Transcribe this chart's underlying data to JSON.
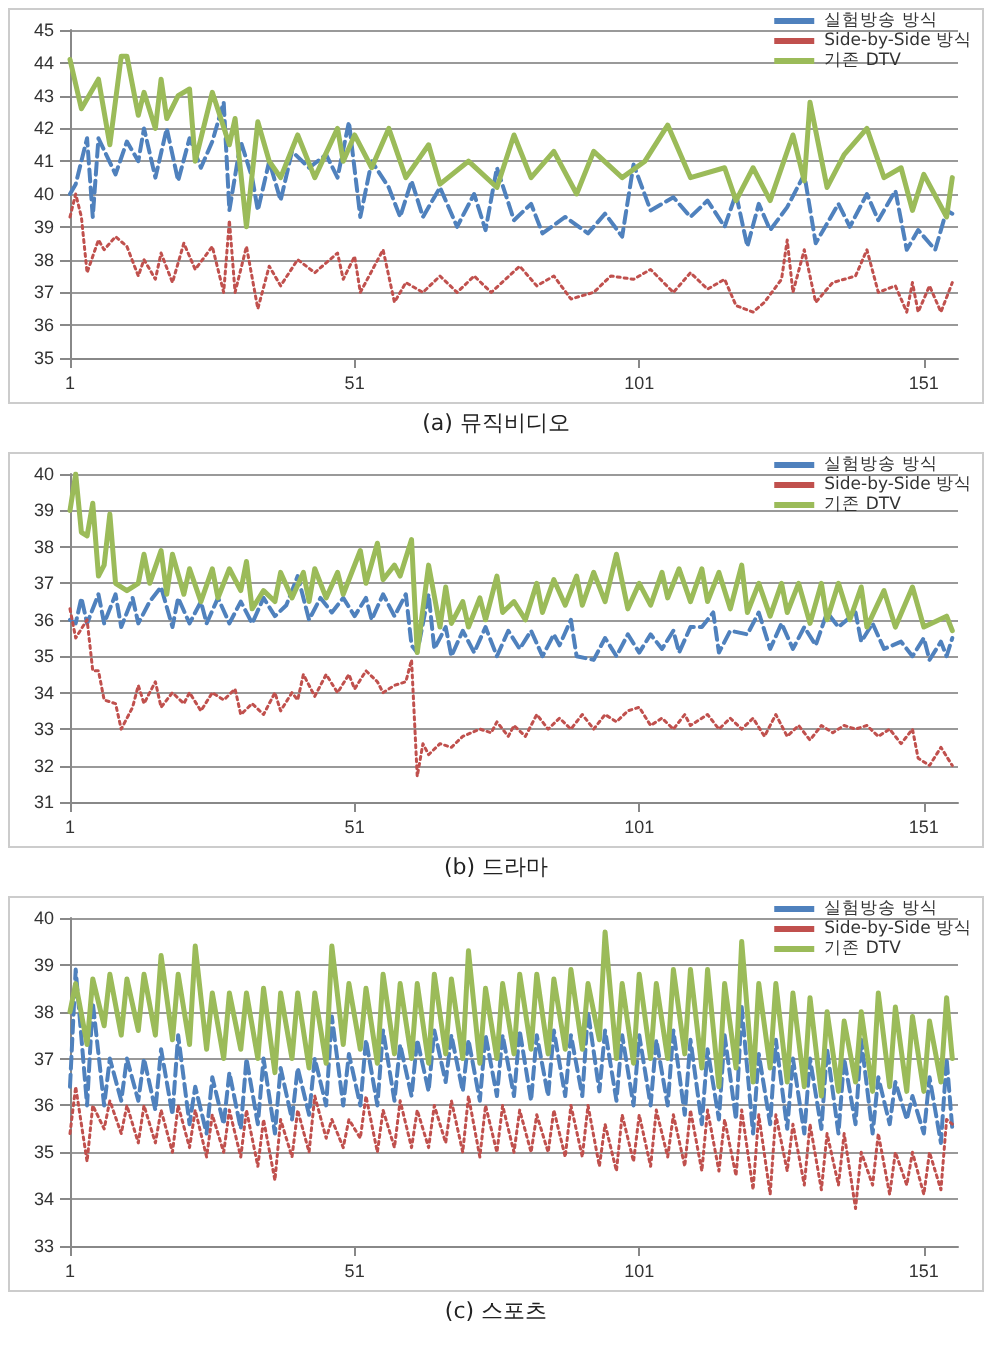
{
  "chart_data": [
    {
      "type": "line",
      "title": "(a) 뮤직비디오",
      "xlim": [
        1,
        157
      ],
      "xticks": [
        1,
        51,
        101,
        151
      ],
      "ylim": [
        35,
        45
      ],
      "yticks": [
        35,
        36,
        37,
        38,
        39,
        40,
        41,
        42,
        43,
        44,
        45
      ],
      "grid": "y",
      "legend": "top right",
      "marker": "none",
      "series": [
        {
          "name": "실험방송 방식",
          "color": "#4f81bd",
          "line_style": "dashed",
          "x": [
            1,
            2,
            4,
            5,
            6,
            9,
            11,
            13,
            14,
            16,
            18,
            20,
            22,
            24,
            26,
            28,
            29,
            31,
            33,
            34,
            36,
            38,
            40,
            43,
            46,
            48,
            50,
            52,
            54,
            57,
            59,
            61,
            63,
            66,
            69,
            72,
            74,
            76,
            79,
            82,
            84,
            88,
            92,
            95,
            98,
            100,
            103,
            107,
            110,
            113,
            116,
            118,
            120,
            122,
            124,
            127,
            130,
            132,
            136,
            138,
            141,
            143,
            146,
            148,
            150,
            153,
            155,
            156
          ],
          "values": [
            40,
            40.3,
            41.7,
            39.3,
            41.7,
            40.6,
            41.6,
            41,
            42,
            40.5,
            42,
            40.4,
            41.7,
            40.8,
            41.6,
            42.8,
            39.5,
            41.6,
            40.5,
            39.5,
            41,
            39.8,
            41.3,
            40.8,
            41.2,
            40.5,
            42.2,
            39.3,
            41,
            40.2,
            39.3,
            40.4,
            39.3,
            40.2,
            39,
            40,
            38.9,
            40.8,
            39.2,
            39.7,
            38.8,
            39.3,
            38.8,
            39.4,
            38.7,
            40.9,
            39.5,
            39.9,
            39.3,
            39.8,
            39,
            40,
            38.4,
            39.7,
            38.9,
            39.6,
            40.6,
            38.5,
            39.7,
            39,
            40,
            39.2,
            40.1,
            38.3,
            38.9,
            38.3,
            39.5,
            39.4
          ]
        },
        {
          "name": "Side-by-Side 방식",
          "color": "#c0504d",
          "line_style": "dotted",
          "x": [
            1,
            2,
            3,
            4,
            6,
            7,
            9,
            11,
            13,
            14,
            16,
            17,
            19,
            21,
            23,
            26,
            28,
            29,
            30,
            32,
            34,
            36,
            38,
            41,
            44,
            48,
            49,
            51,
            52,
            56,
            58,
            60,
            63,
            66,
            69,
            72,
            75,
            80,
            83,
            86,
            89,
            93,
            96,
            100,
            103,
            107,
            110,
            113,
            116,
            118,
            121,
            123,
            126,
            127,
            128,
            130,
            132,
            135,
            139,
            141,
            143,
            146,
            148,
            149,
            150,
            152,
            154,
            156
          ],
          "values": [
            39.3,
            40,
            39.3,
            37.6,
            38.6,
            38.3,
            38.7,
            38.4,
            37.5,
            38,
            37.4,
            38.2,
            37.3,
            38.5,
            37.7,
            38.4,
            37,
            39.2,
            37,
            38.4,
            36.5,
            37.8,
            37.2,
            38,
            37.6,
            38.2,
            37.4,
            38.1,
            37,
            38.3,
            36.7,
            37.3,
            37,
            37.5,
            37,
            37.5,
            37,
            37.8,
            37.2,
            37.5,
            36.8,
            37,
            37.5,
            37.4,
            37.7,
            37,
            37.6,
            37.1,
            37.4,
            36.6,
            36.4,
            36.7,
            37.4,
            38.6,
            37,
            38.3,
            36.7,
            37.3,
            37.5,
            38.3,
            37,
            37.2,
            36.4,
            37.3,
            36.4,
            37.2,
            36.4,
            37.3
          ]
        },
        {
          "name": "기존 DTV",
          "color": "#9bbb59",
          "line_style": "solid",
          "x": [
            1,
            3,
            6,
            8,
            10,
            11,
            13,
            14,
            16,
            17,
            18,
            20,
            22,
            23,
            26,
            29,
            30,
            32,
            34,
            36,
            38,
            41,
            44,
            48,
            49,
            51,
            54,
            57,
            60,
            64,
            66,
            71,
            76,
            79,
            82,
            86,
            90,
            93,
            98,
            102,
            106,
            110,
            116,
            118,
            121,
            124,
            128,
            130,
            131,
            134,
            137,
            141,
            144,
            147,
            149,
            151,
            155,
            156
          ],
          "values": [
            44.1,
            42.6,
            43.5,
            41.5,
            44.2,
            44.2,
            42.4,
            43.1,
            42,
            43.5,
            42.3,
            43,
            43.2,
            41,
            43.1,
            41.5,
            42.3,
            39,
            42.2,
            41,
            40.5,
            41.8,
            40.5,
            42,
            41,
            41.8,
            40.8,
            42,
            40.5,
            41.5,
            40.3,
            41,
            40.2,
            41.8,
            40.5,
            41.3,
            40,
            41.3,
            40.5,
            41,
            42.1,
            40.5,
            40.8,
            39.8,
            40.8,
            39.8,
            41.8,
            40.4,
            42.8,
            40.2,
            41.2,
            42,
            40.5,
            40.8,
            39.5,
            40.6,
            39.3,
            40.5
          ]
        }
      ]
    },
    {
      "type": "line",
      "title": "(b) 드라마",
      "xlim": [
        1,
        157
      ],
      "xticks": [
        1,
        51,
        101,
        151
      ],
      "ylim": [
        31,
        40
      ],
      "yticks": [
        31,
        32,
        33,
        34,
        35,
        36,
        37,
        38,
        39,
        40
      ],
      "grid": "y",
      "legend": "top right",
      "marker": "none",
      "series": [
        {
          "name": "실험방송 방식",
          "color": "#4f81bd",
          "line_style": "dashed",
          "x": [
            1,
            2,
            3,
            4,
            6,
            7,
            9,
            10,
            12,
            13,
            15,
            17,
            19,
            20,
            22,
            24,
            25,
            27,
            29,
            31,
            33,
            35,
            37,
            39,
            41,
            43,
            45,
            47,
            49,
            51,
            53,
            54,
            56,
            58,
            60,
            61,
            62,
            64,
            65,
            67,
            68,
            70,
            72,
            74,
            76,
            78,
            80,
            82,
            84,
            86,
            87,
            89,
            90,
            93,
            95,
            97,
            99,
            101,
            103,
            105,
            107,
            108,
            110,
            112,
            114,
            115,
            117,
            120,
            122,
            124,
            126,
            128,
            130,
            132,
            134,
            136,
            139,
            140,
            142,
            144,
            147,
            149,
            151,
            152,
            154,
            155,
            156
          ],
          "values": [
            36,
            35.9,
            36.6,
            35.9,
            36.7,
            35.9,
            36.7,
            35.8,
            36.6,
            35.9,
            36.5,
            36.9,
            35.8,
            36.6,
            35.9,
            36.5,
            35.9,
            36.6,
            35.9,
            36.5,
            35.9,
            36.6,
            36.1,
            36.4,
            37.2,
            36,
            36.6,
            36.2,
            36.6,
            36.1,
            36.6,
            36,
            36.7,
            36.1,
            36.7,
            35.3,
            35.1,
            36.7,
            35.2,
            35.8,
            35,
            35.7,
            35.1,
            35.8,
            35,
            35.7,
            35.2,
            35.7,
            35,
            35.6,
            35.3,
            36,
            35,
            34.9,
            35.5,
            35,
            35.6,
            35.1,
            35.6,
            35.2,
            35.7,
            35.1,
            35.8,
            35.8,
            36.2,
            35.1,
            35.7,
            35.6,
            36.2,
            35.2,
            35.9,
            35.2,
            35.8,
            35.3,
            36.2,
            35.8,
            36.2,
            35.4,
            35.9,
            35.2,
            35.4,
            35,
            35.5,
            34.9,
            35.4,
            35,
            35.5
          ]
        },
        {
          "name": "Side-by-Side 방식",
          "color": "#c0504d",
          "line_style": "dotted",
          "x": [
            1,
            2,
            4,
            5,
            6,
            7,
            9,
            10,
            12,
            13,
            14,
            16,
            17,
            19,
            21,
            22,
            24,
            26,
            28,
            30,
            31,
            33,
            35,
            37,
            38,
            40,
            41,
            42,
            44,
            46,
            48,
            50,
            51,
            53,
            55,
            56,
            58,
            60,
            61,
            62,
            63,
            64,
            66,
            68,
            70,
            73,
            75,
            76,
            78,
            79,
            81,
            83,
            85,
            87,
            89,
            91,
            93,
            95,
            97,
            99,
            101,
            103,
            105,
            107,
            109,
            110,
            113,
            115,
            117,
            119,
            121,
            123,
            125,
            127,
            129,
            131,
            133,
            135,
            137,
            139,
            141,
            143,
            145,
            147,
            149,
            150,
            152,
            154,
            156
          ],
          "values": [
            36.3,
            35.5,
            36,
            34.6,
            34.6,
            33.8,
            33.7,
            33,
            33.6,
            34.2,
            33.7,
            34.3,
            33.6,
            34,
            33.7,
            34,
            33.5,
            34,
            33.8,
            34.1,
            33.4,
            33.7,
            33.4,
            34,
            33.5,
            34,
            33.8,
            34.5,
            33.9,
            34.5,
            34,
            34.5,
            34.1,
            34.6,
            34.3,
            34,
            34.2,
            34.3,
            34.9,
            31.7,
            32.6,
            32.3,
            32.6,
            32.5,
            32.8,
            33,
            32.9,
            33.2,
            32.8,
            33.1,
            32.8,
            33.4,
            33,
            33.3,
            33,
            33.4,
            33,
            33.4,
            33.2,
            33.5,
            33.6,
            33.1,
            33.3,
            33,
            33.4,
            33.1,
            33.4,
            33,
            33.3,
            33,
            33.3,
            32.8,
            33.4,
            32.8,
            33.1,
            32.7,
            33.1,
            32.9,
            33.1,
            33,
            33.1,
            32.8,
            33,
            32.6,
            33,
            32.2,
            32,
            32.5,
            32
          ]
        },
        {
          "name": "기존 DTV",
          "color": "#9bbb59",
          "line_style": "solid",
          "x": [
            1,
            2,
            3,
            4,
            5,
            6,
            7,
            8,
            9,
            11,
            13,
            14,
            15,
            17,
            18,
            19,
            21,
            22,
            24,
            26,
            27,
            29,
            31,
            32,
            33,
            35,
            37,
            38,
            40,
            42,
            43,
            44,
            46,
            48,
            49,
            52,
            53,
            55,
            56,
            58,
            59,
            61,
            62,
            64,
            66,
            67,
            68,
            70,
            71,
            73,
            74,
            76,
            77,
            79,
            81,
            83,
            84,
            86,
            88,
            90,
            91,
            93,
            95,
            97,
            99,
            101,
            103,
            105,
            106,
            108,
            110,
            112,
            113,
            115,
            117,
            119,
            120,
            122,
            124,
            126,
            127,
            129,
            131,
            133,
            134,
            136,
            138,
            140,
            141,
            144,
            146,
            149,
            151,
            155,
            156
          ],
          "values": [
            39,
            40,
            38.4,
            38.3,
            39.2,
            37.2,
            37.5,
            38.9,
            37,
            36.8,
            37,
            37.8,
            37,
            37.9,
            36.7,
            37.8,
            36.7,
            37.4,
            36.5,
            37.4,
            36.6,
            37.4,
            36.8,
            37.6,
            36.3,
            36.8,
            36.5,
            37.3,
            36.6,
            37.3,
            36.5,
            37.4,
            36.6,
            37.3,
            36.7,
            37.9,
            37,
            38.1,
            37.1,
            37.5,
            37.2,
            38.2,
            35.1,
            37.5,
            35.8,
            36.9,
            35.9,
            36.5,
            35.8,
            36.6,
            36,
            37.2,
            36.2,
            36.5,
            36,
            37,
            36.2,
            37.1,
            36.4,
            37.2,
            36.4,
            37.3,
            36.5,
            37.8,
            36.3,
            37,
            36.4,
            37.3,
            36.6,
            37.4,
            36.5,
            37.4,
            36.5,
            37.3,
            36.3,
            37.5,
            36.2,
            37,
            36.1,
            37,
            36.2,
            37,
            35.9,
            37,
            36,
            37,
            36,
            36.9,
            35.8,
            36.8,
            35.8,
            36.9,
            35.8,
            36.1,
            35.7
          ]
        }
      ]
    },
    {
      "type": "line",
      "title": "(c) 스포츠",
      "xlim": [
        1,
        157
      ],
      "xticks": [
        1,
        51,
        101,
        151
      ],
      "ylim": [
        33,
        40
      ],
      "yticks": [
        33,
        34,
        35,
        36,
        37,
        38,
        39,
        40
      ],
      "grid": "y",
      "legend": "top right",
      "marker": "none",
      "x": [
        1,
        2,
        4,
        5,
        7,
        8,
        10,
        11,
        13,
        14,
        16,
        17,
        19,
        20,
        22,
        23,
        25,
        26,
        28,
        29,
        31,
        32,
        34,
        35,
        37,
        38,
        40,
        41,
        43,
        44,
        46,
        47,
        49,
        50,
        52,
        53,
        55,
        56,
        58,
        59,
        61,
        62,
        64,
        65,
        67,
        68,
        70,
        71,
        73,
        74,
        76,
        77,
        79,
        80,
        82,
        83,
        85,
        86,
        88,
        89,
        91,
        92,
        94,
        95,
        97,
        98,
        100,
        101,
        103,
        104,
        106,
        107,
        109,
        110,
        112,
        113,
        115,
        116,
        118,
        119,
        121,
        122,
        124,
        125,
        127,
        128,
        130,
        131,
        133,
        134,
        136,
        137,
        139,
        140,
        142,
        143,
        145,
        146,
        148,
        149,
        151,
        152,
        154,
        155,
        156
      ],
      "series": [
        {
          "name": "실험방송 방식",
          "color": "#4f81bd",
          "line_style": "dashed",
          "values": [
            36.4,
            38.9,
            36,
            38.2,
            36,
            37,
            36.1,
            37,
            36.1,
            37,
            35.9,
            37.2,
            35.8,
            37.5,
            35.6,
            36.4,
            35.4,
            36.6,
            35.6,
            36.7,
            35.5,
            37,
            35.6,
            37,
            35.4,
            36.8,
            35.7,
            36.8,
            35.8,
            37,
            36,
            37.9,
            36,
            37.1,
            36,
            37.4,
            36,
            37.6,
            36.1,
            37.3,
            36.2,
            37.4,
            36.3,
            37.6,
            36.5,
            37.5,
            36.3,
            37.4,
            36.1,
            37.5,
            36.2,
            37.5,
            36.2,
            37.6,
            36.1,
            37.5,
            36.2,
            37.6,
            36.2,
            37.5,
            36.2,
            38,
            36.3,
            37.6,
            36.1,
            37.5,
            36,
            37.5,
            36,
            37.4,
            36,
            37.6,
            35.8,
            37.4,
            35.6,
            37.2,
            35.7,
            37.5,
            35.7,
            38.1,
            35.4,
            37.1,
            35.6,
            37.4,
            35.5,
            37,
            35.4,
            37,
            35.5,
            37.2,
            35.4,
            37,
            35.6,
            37.4,
            35.4,
            36.6,
            35.6,
            36.5,
            35.7,
            36.2,
            35.4,
            36.6,
            35.2,
            37,
            35.5
          ]
        },
        {
          "name": "Side-by-Side 방식",
          "color": "#c0504d",
          "line_style": "dotted",
          "values": [
            35.4,
            36.4,
            34.8,
            36,
            35.5,
            36.1,
            35.4,
            36,
            35.2,
            36,
            35.2,
            35.9,
            35,
            36,
            35.1,
            35.9,
            34.9,
            35.8,
            35,
            35.9,
            34.9,
            35.9,
            34.7,
            35.7,
            34.4,
            35.7,
            34.9,
            35.9,
            35,
            36.2,
            35.3,
            35.7,
            35.1,
            35.7,
            35.3,
            36.2,
            35,
            35.9,
            35.1,
            36.1,
            35.1,
            35.9,
            35.1,
            36,
            35.2,
            36.1,
            35,
            36.2,
            34.9,
            36,
            35,
            36,
            35,
            35.9,
            35,
            35.8,
            35,
            35.9,
            34.9,
            36,
            34.9,
            36,
            34.7,
            35.6,
            34.6,
            35.8,
            34.8,
            35.8,
            34.7,
            35.9,
            34.9,
            35.8,
            34.7,
            35.9,
            34.6,
            35.9,
            34.6,
            35.7,
            34.5,
            35.9,
            34.2,
            35.8,
            34.1,
            35.8,
            34.6,
            35.6,
            34.3,
            35.6,
            34.2,
            35.4,
            34.3,
            35.4,
            33.8,
            35,
            34.3,
            35.4,
            34.1,
            35,
            34.3,
            35,
            34.1,
            35,
            34.2,
            35.7,
            35.6
          ]
        },
        {
          "name": "기존 DTV",
          "color": "#9bbb59",
          "line_style": "solid",
          "values": [
            38,
            38.6,
            37.3,
            38.7,
            37.7,
            38.8,
            37.5,
            38.7,
            37.6,
            38.8,
            37.5,
            39.2,
            37.4,
            38.8,
            37.3,
            39.4,
            37.2,
            38.4,
            37,
            38.4,
            37.2,
            38.4,
            37,
            38.5,
            36.7,
            38.4,
            37,
            38.4,
            36.8,
            38.4,
            36.9,
            39.4,
            37.3,
            38.6,
            37.2,
            38.5,
            36.9,
            38.8,
            37.1,
            38.6,
            37,
            38.6,
            36.9,
            38.8,
            37.1,
            38.7,
            37,
            39.3,
            36.9,
            38.5,
            37,
            38.6,
            37.1,
            38.8,
            37.2,
            38.8,
            37.1,
            38.7,
            37.2,
            38.9,
            37.2,
            38.6,
            37.4,
            39.7,
            37,
            38.6,
            36.9,
            38.8,
            37,
            38.6,
            37,
            38.9,
            37.1,
            38.9,
            36.8,
            38.9,
            36.4,
            38.6,
            36.8,
            39.5,
            36.5,
            38.6,
            36.8,
            38.6,
            36.5,
            38.4,
            36.4,
            38.3,
            36.2,
            38,
            36.3,
            37.8,
            36.5,
            38,
            36.3,
            38.4,
            36.4,
            38.1,
            36.3,
            37.9,
            36.3,
            37.8,
            36.5,
            38.3,
            37
          ]
        }
      ]
    }
  ]
}
